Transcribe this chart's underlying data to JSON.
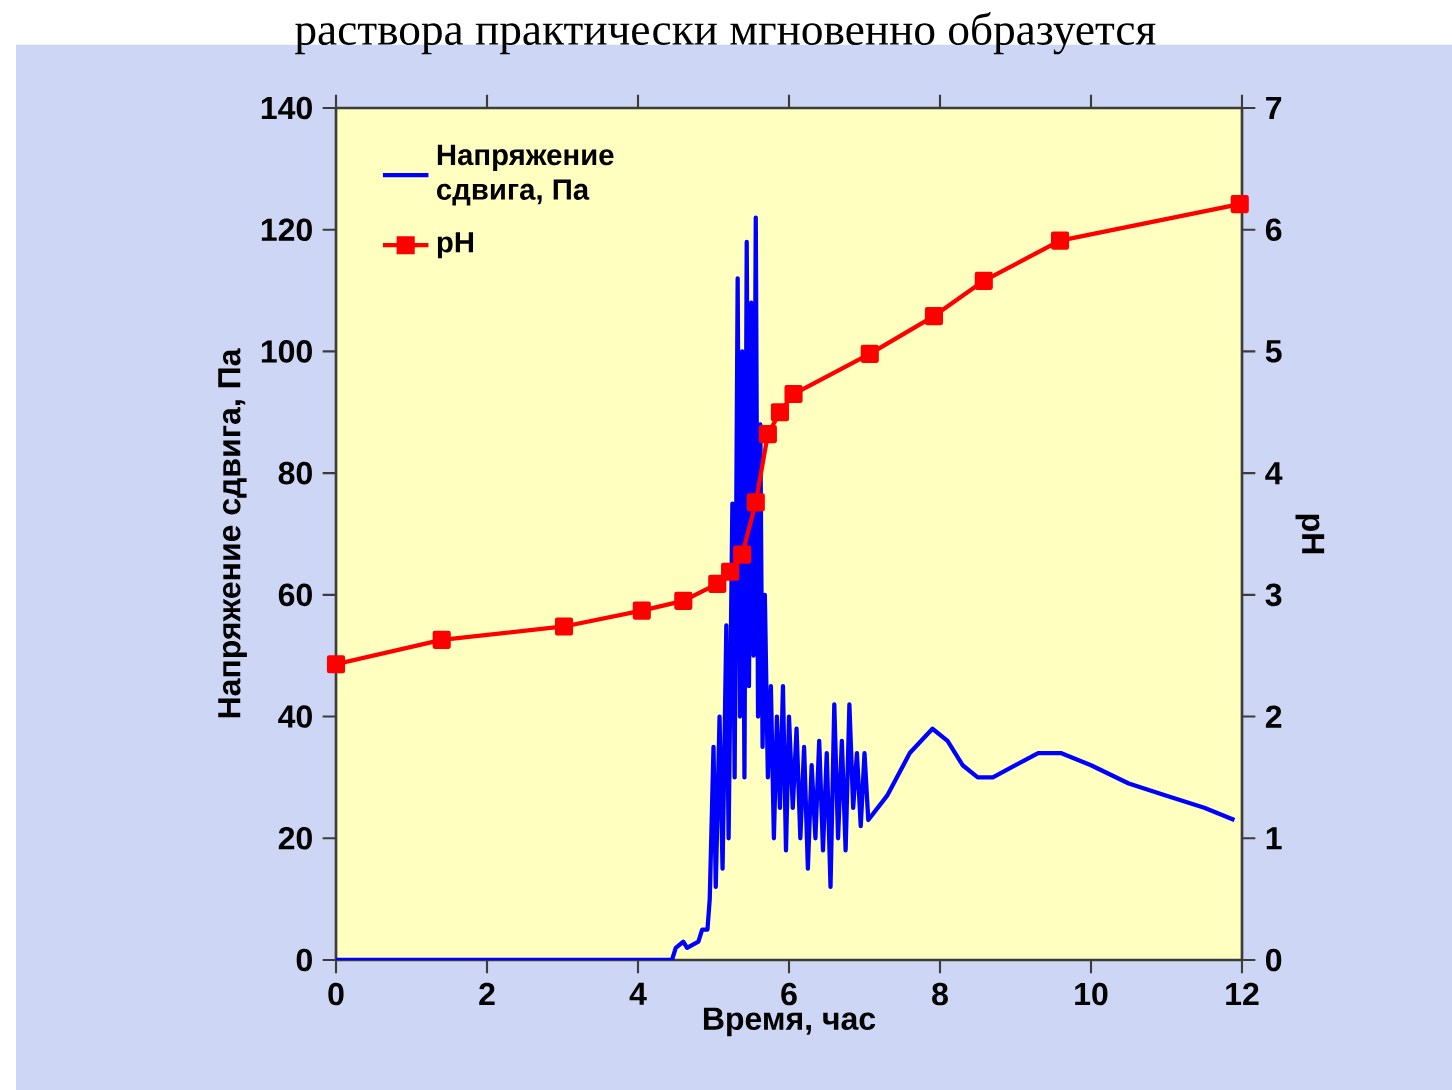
{
  "chart_data": {
    "type": "line",
    "annotations": [
      "раствора практически мгновенно образуется"
    ],
    "xlabel": "Время, час",
    "ylabel": "Напряжение сдвига, Па",
    "y2label": "pH",
    "xlim": [
      0,
      12
    ],
    "xticks": [
      0,
      2,
      4,
      6,
      8,
      10,
      12
    ],
    "ylim": [
      0,
      140
    ],
    "yticks": [
      0,
      20,
      40,
      60,
      80,
      100,
      120,
      140
    ],
    "y2lim": [
      0,
      7
    ],
    "y2ticks": [
      0,
      1,
      2,
      3,
      4,
      5,
      6,
      7
    ],
    "legend": "top left",
    "series": [
      {
        "name": "Напряжение сдвига, Па",
        "color": "#0000ff",
        "marker": "none",
        "x": [
          0,
          4.45,
          4.5,
          4.6,
          4.65,
          4.8,
          4.85,
          4.92,
          4.95,
          5.0,
          5.03,
          5.08,
          5.12,
          5.17,
          5.2,
          5.25,
          5.28,
          5.32,
          5.35,
          5.38,
          5.41,
          5.44,
          5.47,
          5.5,
          5.53,
          5.56,
          5.59,
          5.62,
          5.65,
          5.68,
          5.72,
          5.76,
          5.8,
          5.84,
          5.88,
          5.92,
          5.96,
          6.0,
          6.05,
          6.1,
          6.15,
          6.2,
          6.25,
          6.3,
          6.35,
          6.4,
          6.45,
          6.5,
          6.55,
          6.6,
          6.65,
          6.7,
          6.75,
          6.8,
          6.85,
          6.9,
          6.95,
          7.0,
          7.05,
          7.3,
          7.6,
          7.9,
          8.1,
          8.3,
          8.5,
          8.7,
          9.0,
          9.3,
          9.6,
          10.0,
          10.5,
          11.0,
          11.5,
          11.9
        ],
        "values": [
          0,
          0,
          2,
          3,
          2,
          3,
          5,
          5,
          10,
          35,
          12,
          40,
          15,
          55,
          20,
          75,
          30,
          112,
          40,
          100,
          30,
          118,
          45,
          108,
          50,
          122,
          40,
          88,
          35,
          60,
          30,
          45,
          20,
          40,
          25,
          45,
          18,
          40,
          25,
          38,
          20,
          35,
          15,
          32,
          20,
          36,
          18,
          34,
          12,
          42,
          20,
          36,
          18,
          42,
          25,
          34,
          22,
          34,
          23,
          27,
          34,
          38,
          36,
          32,
          30,
          30,
          32,
          34,
          34,
          32,
          29,
          27,
          25,
          23
        ]
      },
      {
        "name": "pH",
        "color": "#ff0000",
        "marker": "square",
        "axis": "y2",
        "x": [
          0,
          1.4,
          3.02,
          4.05,
          4.6,
          5.05,
          5.22,
          5.38,
          5.56,
          5.72,
          5.88,
          6.06,
          7.07,
          7.92,
          8.58,
          9.59,
          11.97
        ],
        "values": [
          2.43,
          2.63,
          2.74,
          2.87,
          2.95,
          3.09,
          3.19,
          3.33,
          3.76,
          4.32,
          4.5,
          4.65,
          4.98,
          5.29,
          5.58,
          5.91,
          6.21
        ]
      }
    ]
  }
}
